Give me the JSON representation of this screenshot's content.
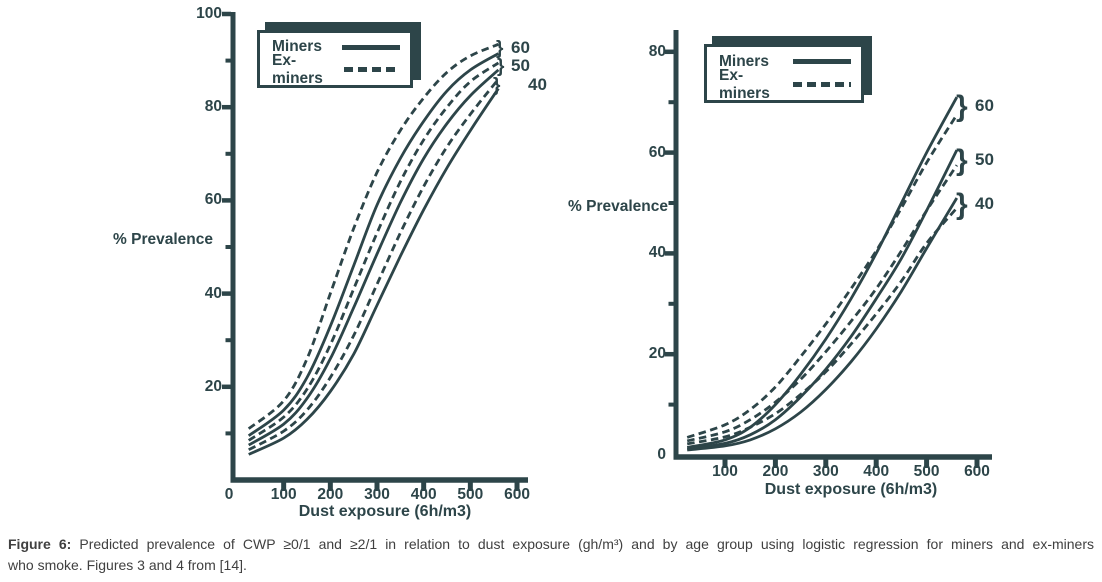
{
  "ink_color": "#2d4549",
  "bracket_glyph": "}",
  "legend": {
    "miners_label": "Miners",
    "ex_miners_label": "Ex-miners"
  },
  "figure": {
    "caption_label": "Figure 6:",
    "caption_line1": "Predicted prevalence of CWP ≥0/1 and ≥2/1 in relation to dust exposure (gh/m³) and by age group using logistic regression for miners and ex-miners",
    "caption_line2": "who smoke. Figures 3 and 4 from [14]."
  },
  "chart_data": [
    {
      "type": "line",
      "title": "Predicted prevalence of CWP ≥0/1",
      "xlabel": "Dust exposure (6h/m3)",
      "ylabel": "% Prevalence",
      "xlim": [
        0,
        600
      ],
      "ylim": [
        0,
        100
      ],
      "x_ticks": [
        0,
        100,
        200,
        300,
        400,
        500,
        600
      ],
      "y_ticks": [
        20,
        40,
        60,
        80,
        100
      ],
      "y_minor_ticks": [
        10,
        30,
        50,
        70,
        90
      ],
      "grid": false,
      "legend_position": "upper-left",
      "legend_entries": [
        "Miners",
        "Ex-miners"
      ],
      "age_group_labels": [
        "60",
        "50",
        "40"
      ],
      "x": [
        25,
        100,
        150,
        200,
        250,
        300,
        350,
        400,
        450,
        500,
        560
      ],
      "series": [
        {
          "name": "Miners age 60",
          "group": "miners",
          "age": 60,
          "style": "solid",
          "values": [
            9.5,
            15,
            22,
            33,
            46,
            59,
            69,
            77,
            83.5,
            88,
            91.5
          ]
        },
        {
          "name": "Ex-miners age 60",
          "group": "ex-miners",
          "age": 60,
          "style": "dashed",
          "values": [
            11,
            17,
            26,
            40,
            54,
            66,
            75,
            82,
            87.5,
            91,
            93.5
          ]
        },
        {
          "name": "Miners age 50",
          "group": "miners",
          "age": 50,
          "style": "solid",
          "values": [
            7.5,
            12,
            17.5,
            26,
            37,
            48.5,
            59.5,
            69,
            76.5,
            82.5,
            88
          ]
        },
        {
          "name": "Ex-miners age 50",
          "group": "ex-miners",
          "age": 50,
          "style": "dashed",
          "values": [
            8.5,
            13.5,
            19.5,
            29,
            41,
            53,
            64,
            73,
            80,
            85.5,
            89.5
          ]
        },
        {
          "name": "Miners age 40",
          "group": "miners",
          "age": 40,
          "style": "solid",
          "values": [
            5.5,
            9,
            13,
            19,
            27,
            37.5,
            48,
            58,
            67,
            75,
            84
          ]
        },
        {
          "name": "Ex-miners age 40",
          "group": "ex-miners",
          "age": 40,
          "style": "dashed",
          "values": [
            6.5,
            10.5,
            15,
            22,
            31,
            42,
            53,
            63,
            71.5,
            78.5,
            86
          ]
        }
      ]
    },
    {
      "type": "line",
      "title": "Predicted prevalence of CWP ≥2/1",
      "xlabel": "Dust exposure (6h/m3)",
      "ylabel": "% Prevalence",
      "xlim": [
        0,
        600
      ],
      "ylim": [
        0,
        80
      ],
      "x_ticks": [
        100,
        200,
        300,
        400,
        500,
        600
      ],
      "y_ticks": [
        0,
        20,
        40,
        60,
        80
      ],
      "y_minor_ticks": [
        10,
        30,
        50,
        70
      ],
      "grid": false,
      "legend_position": "upper-left",
      "legend_entries": [
        "Miners",
        "Ex-miners"
      ],
      "age_group_labels": [
        "60",
        "50",
        "40"
      ],
      "x": [
        25,
        100,
        150,
        200,
        250,
        300,
        350,
        400,
        450,
        500,
        560
      ],
      "series": [
        {
          "name": "Miners age 60",
          "group": "miners",
          "age": 60,
          "style": "solid",
          "values": [
            1.5,
            3,
            5.5,
            10,
            16,
            23,
            31,
            40,
            50,
            60,
            71
          ]
        },
        {
          "name": "Ex-miners age 60",
          "group": "ex-miners",
          "age": 60,
          "style": "dashed",
          "values": [
            3.5,
            6,
            9,
            13.5,
            19.5,
            26,
            33,
            40.5,
            49,
            58,
            67.5
          ]
        },
        {
          "name": "Miners age 50",
          "group": "miners",
          "age": 50,
          "style": "solid",
          "values": [
            1.2,
            2.3,
            4,
            7,
            11.5,
            17,
            23.5,
            31,
            39,
            48.5,
            60.5
          ]
        },
        {
          "name": "Ex-miners age 50",
          "group": "ex-miners",
          "age": 50,
          "style": "dashed",
          "values": [
            2.8,
            4.6,
            7,
            10.5,
            15,
            20.5,
            26.5,
            33,
            40.5,
            48.5,
            57.5
          ]
        },
        {
          "name": "Miners age 40",
          "group": "miners",
          "age": 40,
          "style": "solid",
          "values": [
            1,
            1.8,
            3,
            5.2,
            8.5,
            13,
            18.5,
            25,
            32.5,
            41,
            51
          ]
        },
        {
          "name": "Ex-miners age 40",
          "group": "ex-miners",
          "age": 40,
          "style": "dashed",
          "values": [
            2.2,
            3.6,
            5.5,
            8.2,
            12,
            16.5,
            22,
            28,
            34.5,
            42,
            49
          ]
        }
      ]
    }
  ]
}
